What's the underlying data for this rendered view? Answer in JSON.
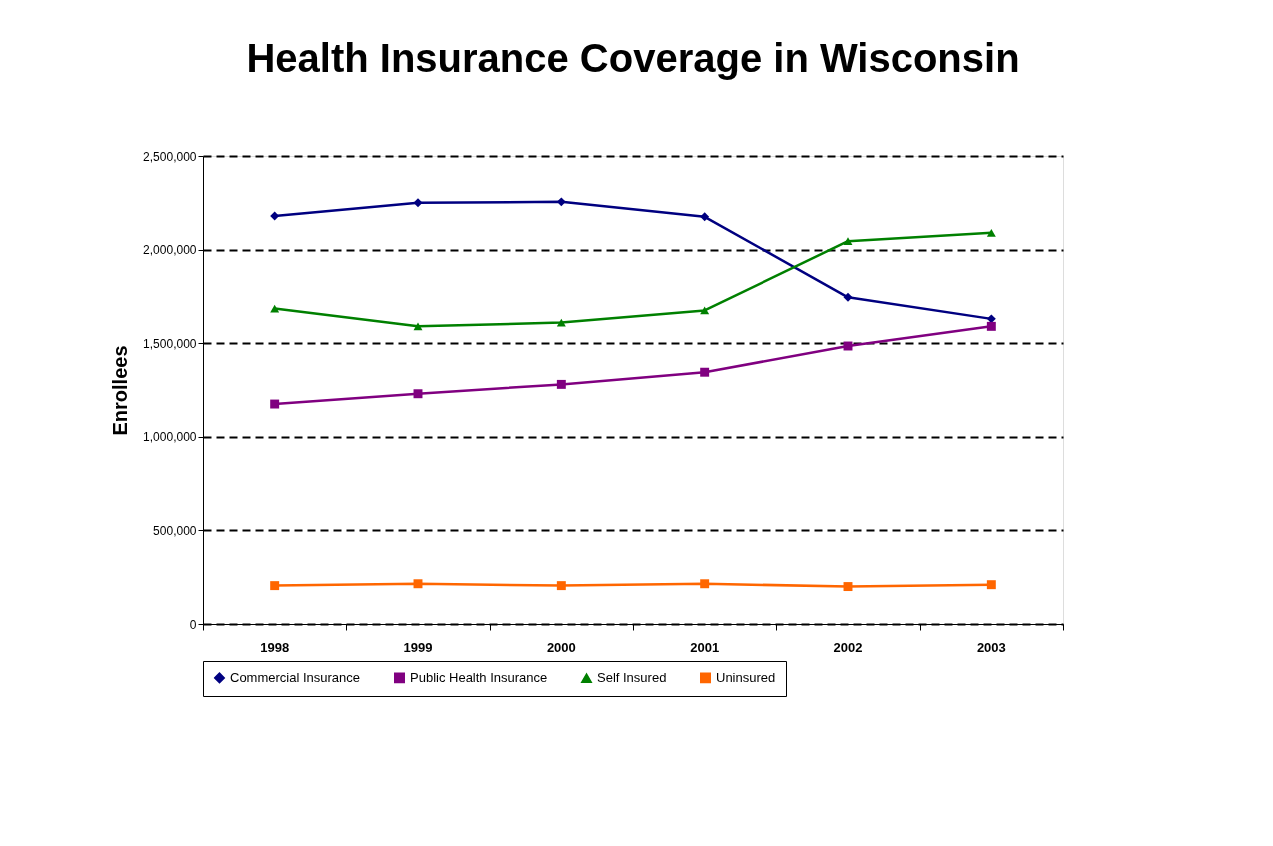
{
  "chart_data": {
    "type": "line",
    "title": "Health Insurance Coverage in Wisconsin",
    "ylabel": "Enrollees",
    "categories": [
      "1998",
      "1999",
      "2000",
      "2001",
      "2002",
      "2003"
    ],
    "series": [
      {
        "name": "Commercial Insurance",
        "color": "#000080",
        "marker": "diamond",
        "values": [
          2180000,
          2250000,
          2255000,
          2175000,
          1745000,
          1630000
        ]
      },
      {
        "name": "Public Health Insurance",
        "color": "#800080",
        "marker": "square",
        "values": [
          1175000,
          1230000,
          1280000,
          1345000,
          1485000,
          1590000
        ]
      },
      {
        "name": "Self Insured",
        "color": "#008000",
        "marker": "triangle",
        "values": [
          1685000,
          1590000,
          1610000,
          1675000,
          2045000,
          2090000
        ]
      },
      {
        "name": "Uninsured",
        "color": "#ff6600",
        "marker": "square",
        "values": [
          205000,
          215000,
          205000,
          215000,
          200000,
          210000
        ]
      }
    ],
    "ylim": [
      0,
      2500000
    ],
    "yticks": [
      {
        "value": 0,
        "label": "0"
      },
      {
        "value": 500000,
        "label": "500,000"
      },
      {
        "value": 1000000,
        "label": "1,000,000"
      },
      {
        "value": 1500000,
        "label": "1,500,000"
      },
      {
        "value": 2000000,
        "label": "2,000,000"
      },
      {
        "value": 2500000,
        "label": "2,500,000"
      }
    ],
    "grid": "y",
    "legend": "bottom",
    "line_style": "solid"
  }
}
